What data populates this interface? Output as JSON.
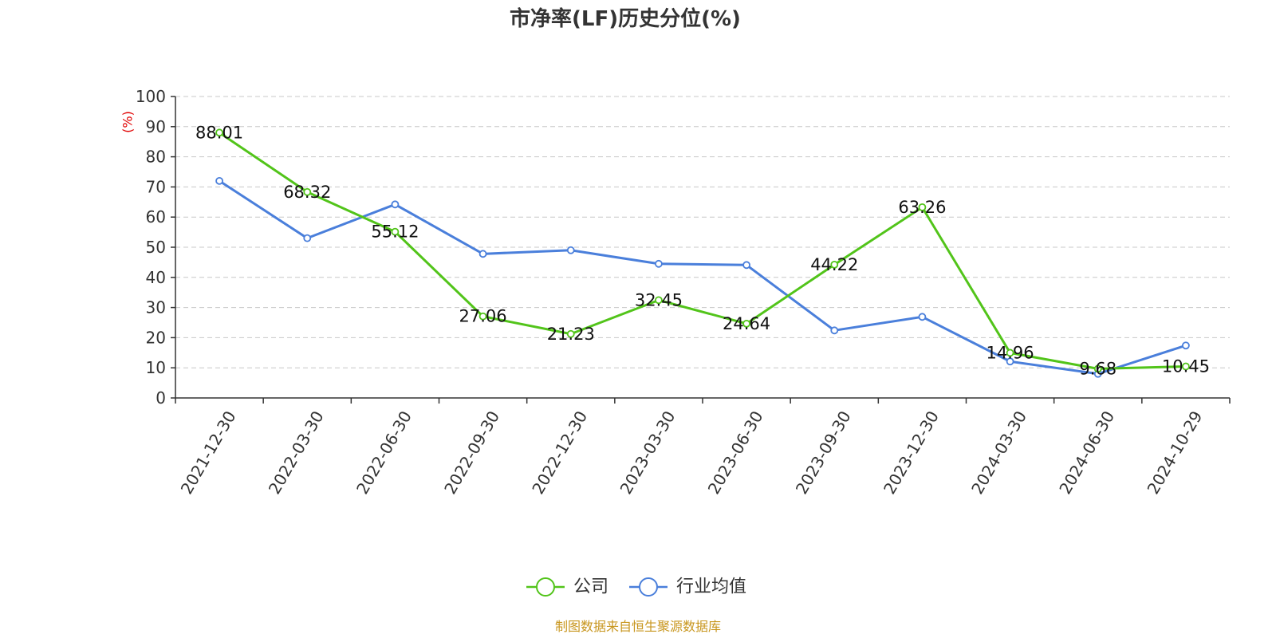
{
  "chart_data": {
    "type": "line",
    "title": "市净率(LF)历史分位(%)",
    "ylabel": "(%)",
    "xlabel": "",
    "ylim": [
      0,
      100
    ],
    "yticks": [
      0,
      10,
      20,
      30,
      40,
      50,
      60,
      70,
      80,
      90,
      100
    ],
    "grid": true,
    "legend_position": "bottom",
    "categories": [
      "2021-12-30",
      "2022-03-30",
      "2022-06-30",
      "2022-09-30",
      "2022-12-30",
      "2023-03-30",
      "2023-06-30",
      "2023-09-30",
      "2023-12-30",
      "2024-03-30",
      "2024-06-30",
      "2024-10-29"
    ],
    "series": [
      {
        "name": "公司",
        "color": "#52c41a",
        "values": [
          88.01,
          68.32,
          55.12,
          27.06,
          21.23,
          32.45,
          24.64,
          44.22,
          63.26,
          14.96,
          9.68,
          10.45
        ],
        "show_labels": true
      },
      {
        "name": "行业均值",
        "color": "#4a7fdb",
        "values": [
          72.0,
          53.0,
          64.2,
          47.8,
          49.0,
          44.5,
          44.1,
          22.4,
          26.9,
          12.1,
          8.0,
          17.4
        ],
        "show_labels": false
      }
    ],
    "source": "制图数据来自恒生聚源数据库"
  }
}
